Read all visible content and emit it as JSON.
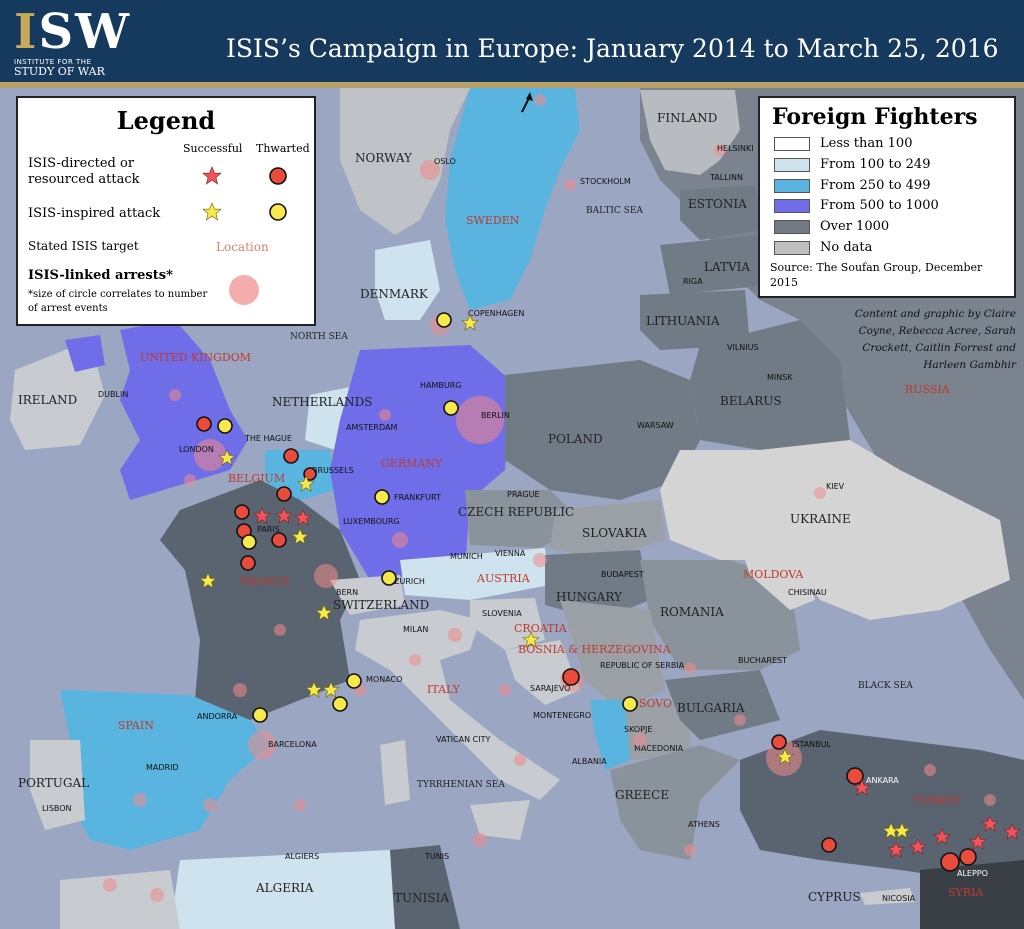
{
  "header": {
    "logo_text": "ISW",
    "logo_sub1": "INSTITUTE FOR THE",
    "logo_sub2": "STUDY OF WAR",
    "title": "ISIS’s Campaign in Europe: January 2014 to March 25, 2016"
  },
  "legend": {
    "title": "Legend",
    "col_successful": "Successful",
    "col_thwarted": "Thwarted",
    "row_directed": "ISIS-directed or resourced attack",
    "row_inspired": "ISIS-inspired attack",
    "row_target": "Stated ISIS target",
    "target_sample": "Location",
    "row_arrests": "ISIS-linked arrests*",
    "footnote": "*size of circle correlates to number of arrest events",
    "colors": {
      "directed": "#e74c3c",
      "inspired": "#f5e94b",
      "target_text": "#d9826b",
      "arrest": "#f08a8a"
    }
  },
  "foreign_fighters": {
    "title": "Foreign Fighters",
    "items": [
      {
        "label": "Less than 100",
        "color": "#ffffff"
      },
      {
        "label": "From 100 to 249",
        "color": "#cfe3ee"
      },
      {
        "label": "From 250 to 499",
        "color": "#5ab4e0"
      },
      {
        "label": "From 500 to 1000",
        "color": "#6f6ee8"
      },
      {
        "label": "Over 1000",
        "color": "#707b86"
      },
      {
        "label": "No data",
        "color": "#bfbfbf"
      }
    ],
    "source": "Source: The Soufan Group, December 2015"
  },
  "credits": "Content and graphic by Claire Coyne, Rebecca Acree, Sarah Crockett, Caitlin Forrest and Harleen Gambhir",
  "countries": {
    "finland": "FINLAND",
    "norway": "NORWAY",
    "sweden": "SWEDEN",
    "estonia": "ESTONIA",
    "latvia": "LATVIA",
    "lithuania": "LITHUANIA",
    "denmark": "DENMARK",
    "russia": "RUSSIA",
    "belarus": "BELARUS",
    "united_kingdom": "UNITED KINGDOM",
    "ireland": "IRELAND",
    "netherlands": "NETHERLANDS",
    "germany": "GERMANY",
    "poland": "POLAND",
    "belgium": "BELGIUM",
    "czech": "CZECH REPUBLIC",
    "slovakia": "SLOVAKIA",
    "ukraine": "UKRAINE",
    "luxembourg": "LUXEMBOURG",
    "france": "FRANCE",
    "austria": "AUSTRIA",
    "hungary": "HUNGARY",
    "moldova": "MOLDOVA",
    "switzerland": "SWITZERLAND",
    "romania": "ROMANIA",
    "croatia": "CROATIA",
    "bosnia": "BOSNIA & HERZEGOVINA",
    "serbia": "REPUBLIC OF SERBIA",
    "slovenia": "SLOVENIA",
    "italy": "ITALY",
    "montenegro": "MONTENEGRO",
    "kosovo": "KOSOVO",
    "bulgaria": "BULGARIA",
    "macedonia": "MACEDONIA",
    "albania": "ALBANIA",
    "spain": "SPAIN",
    "portugal": "PORTUGAL",
    "andorra": "ANDORRA",
    "monaco": "MONACO",
    "greece": "GREECE",
    "turkey": "TURKEY",
    "algeria": "ALGERIA",
    "tunisia": "TUNISIA",
    "cyprus": "CYPRUS",
    "syria": "SYRIA"
  },
  "cities": {
    "oslo": "OSLO",
    "helsinki": "HELSINKI",
    "tallinn": "TALLINN",
    "stockholm": "STOCKHOLM",
    "riga": "RIGA",
    "copenhagen": "COPENHAGEN",
    "vilnius": "VILNIUS",
    "minsk": "MINSK",
    "dublin": "DUBLIN",
    "hamburg": "HAMBURG",
    "amsterdam": "AMSTERDAM",
    "the_hague": "THE HAGUE",
    "berlin": "BERLIN",
    "warsaw": "WARSAW",
    "london": "LONDON",
    "brussels": "BRUSSELS",
    "paris": "PARIS",
    "frankfurt": "FRANKFURT",
    "prague": "PRAGUE",
    "kiev": "KIEV",
    "munich": "MUNICH",
    "vienna": "VIENNA",
    "bern": "BERN",
    "zurich": "ZURICH",
    "budapest": "BUDAPEST",
    "chisinau": "CHISINAU",
    "milan": "MILAN",
    "bucharest": "BUCHAREST",
    "sarajevo": "SARAJEVO",
    "skopje": "SKOPJE",
    "barcelona": "BARCELONA",
    "vatican_city": "VATICAN CITY",
    "istanbul": "ISTANBUL",
    "madrid": "MADRID",
    "ankara": "ANKARA",
    "lisbon": "LISBON",
    "athens": "ATHENS",
    "algiers": "ALGIERS",
    "tunis": "TUNIS",
    "aleppo": "ALEPPO",
    "nicosia": "NICOSIA"
  },
  "seas": {
    "baltic": "BALTIC SEA",
    "north": "NORTH SEA",
    "black": "BLACK SEA",
    "tyrrhenian": "TYRRHENIAN SEA"
  }
}
